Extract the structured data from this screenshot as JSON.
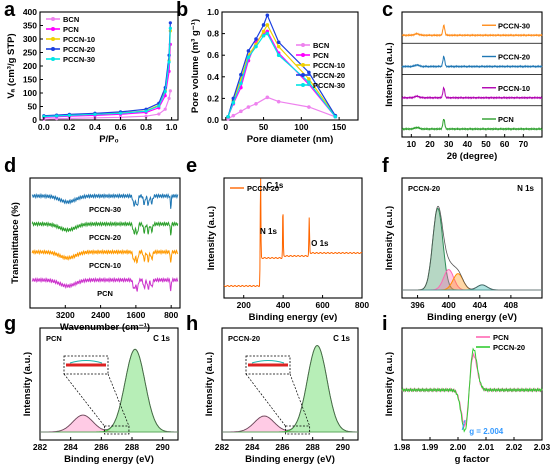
{
  "chart_data": [
    {
      "panel": "a",
      "type": "line",
      "xlabel": "P/P₀",
      "ylabel": "Vₐ (cm³/g STP)",
      "xlim": [
        -0.03,
        1.05
      ],
      "ylim": [
        0,
        400
      ],
      "xticks": [
        "0.0",
        "0.2",
        "0.4",
        "0.6",
        "0.8",
        "1.0"
      ],
      "yticks": [
        "0",
        "50",
        "100",
        "150",
        "200",
        "250",
        "300",
        "350",
        "400"
      ],
      "legend": [
        "BCN",
        "PCN",
        "PCCN-10",
        "PCCN-20",
        "PCCN-30"
      ],
      "legend_position": "top-left",
      "series": [
        {
          "name": "BCN",
          "color": "#ee82ee",
          "x": [
            0,
            0.1,
            0.2,
            0.4,
            0.6,
            0.8,
            0.9,
            0.95,
            0.98,
            0.99
          ],
          "y": [
            3,
            5,
            6,
            8,
            10,
            14,
            22,
            40,
            80,
            108
          ]
        },
        {
          "name": "PCN",
          "color": "#ff00ff",
          "x": [
            0,
            0.1,
            0.2,
            0.4,
            0.6,
            0.8,
            0.9,
            0.95,
            0.98,
            0.99
          ],
          "y": [
            10,
            12,
            14,
            17,
            21,
            28,
            45,
            90,
            180,
            280
          ]
        },
        {
          "name": "PCCN-10",
          "color": "#f0d000",
          "x": [
            0,
            0.1,
            0.2,
            0.4,
            0.6,
            0.8,
            0.9,
            0.95,
            0.98,
            0.99
          ],
          "y": [
            14,
            16,
            18,
            22,
            26,
            34,
            55,
            110,
            220,
            330
          ]
        },
        {
          "name": "PCCN-20",
          "color": "#1a3ee0",
          "x": [
            0,
            0.1,
            0.2,
            0.4,
            0.6,
            0.8,
            0.9,
            0.95,
            0.98,
            0.99
          ],
          "y": [
            16,
            18,
            21,
            25,
            30,
            40,
            62,
            120,
            240,
            360
          ]
        },
        {
          "name": "PCCN-30",
          "color": "#00e5e5",
          "x": [
            0,
            0.1,
            0.2,
            0.4,
            0.6,
            0.8,
            0.9,
            0.95,
            0.98,
            0.99
          ],
          "y": [
            13,
            15,
            17,
            21,
            25,
            33,
            52,
            105,
            215,
            340
          ]
        }
      ]
    },
    {
      "panel": "b",
      "type": "line",
      "xlabel": "Pore diameter (nm)",
      "ylabel": "Pore volume (m³ g⁻¹)",
      "xlim": [
        -5,
        175
      ],
      "ylim": [
        0,
        1.0
      ],
      "xticks": [
        "0",
        "50",
        "100",
        "150"
      ],
      "yticks": [
        "0.0",
        "0.2",
        "0.4",
        "0.6",
        "0.8",
        "1.0"
      ],
      "legend": [
        "BCN",
        "PCN",
        "PCCN-10",
        "PCCN-20",
        "PCCN-30"
      ],
      "legend_position": "top-right",
      "series": [
        {
          "name": "BCN",
          "color": "#ee82ee",
          "x": [
            3,
            10,
            20,
            30,
            40,
            55,
            70,
            110,
            145
          ],
          "y": [
            0.01,
            0.04,
            0.08,
            0.12,
            0.15,
            0.21,
            0.17,
            0.12,
            0.03
          ]
        },
        {
          "name": "PCN",
          "color": "#ff00ff",
          "x": [
            3,
            10,
            20,
            30,
            40,
            50,
            55,
            70,
            110,
            145
          ],
          "y": [
            0.03,
            0.15,
            0.3,
            0.55,
            0.72,
            0.8,
            0.82,
            0.62,
            0.33,
            0.03
          ]
        },
        {
          "name": "PCCN-10",
          "color": "#f0d000",
          "x": [
            3,
            10,
            20,
            30,
            40,
            50,
            55,
            70,
            110,
            145
          ],
          "y": [
            0.03,
            0.18,
            0.38,
            0.6,
            0.7,
            0.82,
            0.88,
            0.68,
            0.38,
            0.04
          ]
        },
        {
          "name": "PCCN-20",
          "color": "#1a3ee0",
          "x": [
            3,
            10,
            20,
            30,
            40,
            50,
            55,
            70,
            110,
            145
          ],
          "y": [
            0.03,
            0.2,
            0.42,
            0.64,
            0.75,
            0.88,
            0.97,
            0.72,
            0.44,
            0.04
          ]
        },
        {
          "name": "PCCN-30",
          "color": "#00e5e5",
          "x": [
            3,
            10,
            20,
            30,
            40,
            50,
            55,
            70,
            110,
            145
          ],
          "y": [
            0.03,
            0.16,
            0.34,
            0.58,
            0.68,
            0.78,
            0.8,
            0.6,
            0.35,
            0.03
          ]
        }
      ]
    },
    {
      "panel": "c",
      "type": "line",
      "xlabel": "2θ (degree)",
      "ylabel": "Intensity (a.u.)",
      "xlim": [
        5,
        80
      ],
      "xticks": [
        "10",
        "20",
        "30",
        "40",
        "50",
        "60",
        "70"
      ],
      "traces": [
        {
          "name": "PCCN-30",
          "color": "#ff8c1a",
          "peak_x": 27.4,
          "peak2_x": 13.0
        },
        {
          "name": "PCCN-20",
          "color": "#1f77b4",
          "peak_x": 27.4,
          "peak2_x": 13.0
        },
        {
          "name": "PCCN-10",
          "color": "#b000b0",
          "peak_x": 27.4,
          "peak2_x": 13.0
        },
        {
          "name": "PCN",
          "color": "#2ca02c",
          "peak_x": 27.4,
          "peak2_x": 13.0
        }
      ]
    },
    {
      "panel": "d",
      "type": "line",
      "xlabel": "Wavenumber (cm⁻¹)",
      "ylabel": "Transmittance (%)",
      "xlim": [
        4000,
        600
      ],
      "xticks": [
        "3200",
        "2400",
        "1600",
        "800"
      ],
      "traces": [
        {
          "name": "PCCN-30",
          "color": "#1f77b4"
        },
        {
          "name": "PCCN-20",
          "color": "#2ca02c"
        },
        {
          "name": "PCCN-10",
          "color": "#ff9900"
        },
        {
          "name": "PCN",
          "color": "#cc33cc"
        }
      ]
    },
    {
      "panel": "e",
      "type": "line",
      "xlabel": "Binding energy (ev)",
      "ylabel": "Intensity (a.u.)",
      "xlim": [
        100,
        800
      ],
      "xticks": [
        "200",
        "400",
        "600",
        "800"
      ],
      "legend": [
        "PCCN-20"
      ],
      "series_color": "#ff6600",
      "annotations": [
        "C 1s",
        "N 1s",
        "O 1s"
      ],
      "peaks": [
        {
          "label": "N 1s",
          "x": 399,
          "height": 0.5
        },
        {
          "label": "C 1s",
          "x": 285,
          "height": 0.96
        },
        {
          "label": "O 1s",
          "x": 532,
          "height": 0.38
        }
      ]
    },
    {
      "panel": "f",
      "type": "line",
      "xlabel": "Binding energy (eV)",
      "ylabel": "Intensity (a.u.)",
      "xlim": [
        394,
        412
      ],
      "xticks": [
        "396",
        "400",
        "404",
        "408"
      ],
      "sample": "PCCN-20",
      "annotation": "N 1s",
      "components": [
        {
          "center": 398.6,
          "height": 0.8,
          "color": "#2e8b57"
        },
        {
          "center": 400.0,
          "height": 0.2,
          "color": "#ff69b4"
        },
        {
          "center": 401.2,
          "height": 0.16,
          "color": "#ff8c00"
        },
        {
          "center": 404.3,
          "height": 0.05,
          "color": "#20b2aa"
        }
      ]
    },
    {
      "panel": "g",
      "type": "line",
      "xlabel": "Binding energy (eV)",
      "ylabel": "Intensity (a.u.)",
      "xlim": [
        282,
        291
      ],
      "xticks": [
        "282",
        "284",
        "286",
        "288",
        "290"
      ],
      "sample": "PCN",
      "annotation": "C 1s",
      "components": [
        {
          "center": 284.8,
          "height": 0.18,
          "color": "#ff69b4"
        },
        {
          "center": 288.2,
          "height": 0.88,
          "color": "#32cd32"
        }
      ]
    },
    {
      "panel": "h",
      "type": "line",
      "xlabel": "Binding energy (eV)",
      "ylabel": "Intensity (a.u.)",
      "xlim": [
        282,
        291
      ],
      "xticks": [
        "282",
        "284",
        "286",
        "288",
        "290"
      ],
      "sample": "PCCN-20",
      "annotation": "C 1s",
      "components": [
        {
          "center": 284.8,
          "height": 0.17,
          "color": "#ff69b4"
        },
        {
          "center": 288.3,
          "height": 0.92,
          "color": "#32cd32"
        }
      ]
    },
    {
      "panel": "i",
      "type": "line",
      "xlabel": "g factor",
      "ylabel": "Intensity (a.u.)",
      "xlim": [
        1.98,
        2.03
      ],
      "xticks": [
        "1.98",
        "1.99",
        "2.00",
        "2.01",
        "2.02",
        "2.03"
      ],
      "legend": [
        "PCN",
        "PCCN-20"
      ],
      "legend_position": "top-right",
      "annotation": "g = 2.004",
      "center_g": 2.004,
      "series": [
        {
          "name": "PCN",
          "color": "#ff69b4"
        },
        {
          "name": "PCCN-20",
          "color": "#33cc33"
        }
      ]
    }
  ]
}
